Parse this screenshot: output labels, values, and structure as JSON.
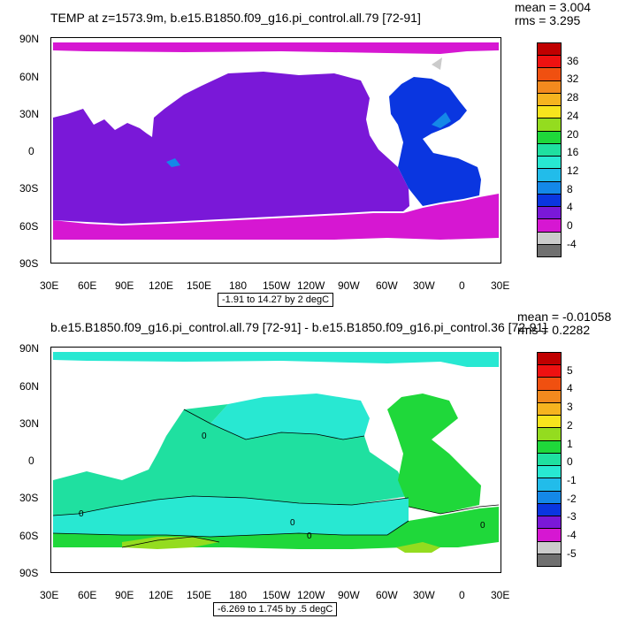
{
  "chart_data": [
    {
      "type": "heatmap",
      "title": "TEMP at z=1573.9m, b.e15.B1850.f09_g16.pi_control.all.79 [72-91]",
      "stats": {
        "mean": "mean = 3.004",
        "rms": "rms = 3.295"
      },
      "range_label": "-1.91 to 14.27 by 2 degC",
      "x_ticks": [
        "30E",
        "60E",
        "90E",
        "120E",
        "150E",
        "180",
        "150W",
        "120W",
        "90W",
        "60W",
        "30W",
        "0",
        "30E"
      ],
      "y_ticks": [
        "90N",
        "60N",
        "30N",
        "0",
        "30S",
        "60S",
        "90S"
      ],
      "colorbar_labels": [
        "36",
        "32",
        "28",
        "24",
        "20",
        "16",
        "12",
        "8",
        "4",
        "0",
        "-4"
      ],
      "colorbar_colors": [
        "#c00000",
        "#ee1111",
        "#f05010",
        "#f38a1e",
        "#f6b41f",
        "#f7e41d",
        "#94dc1f",
        "#1fd83a",
        "#1fe0a0",
        "#28e8d2",
        "#22bcea",
        "#1488e8",
        "#0a36e0",
        "#7a18d8",
        "#d617d2",
        "#cbcbcb",
        "#707070"
      ],
      "regions": [
        {
          "name": "arctic",
          "color": "#d617d2"
        },
        {
          "name": "pacific-indian",
          "color": "#7a18d8"
        },
        {
          "name": "atlantic",
          "color": "#0a36e0"
        },
        {
          "name": "southern",
          "color": "#d617d2"
        }
      ]
    },
    {
      "type": "heatmap",
      "title": "b.e15.B1850.f09_g16.pi_control.all.79 [72-91] - b.e15.B1850.f09_g16.pi_control.36 [72-91]",
      "stats": {
        "mean": "mean = -0.01058",
        "rms": "rms = 0.2282"
      },
      "range_label": "-6.269 to 1.745 by .5 degC",
      "x_ticks": [
        "30E",
        "60E",
        "90E",
        "120E",
        "150E",
        "180",
        "150W",
        "120W",
        "90W",
        "60W",
        "30W",
        "0",
        "30E"
      ],
      "y_ticks": [
        "90N",
        "60N",
        "30N",
        "0",
        "30S",
        "60S",
        "90S"
      ],
      "colorbar_labels": [
        "5",
        "4",
        "3",
        "2",
        "1",
        "0",
        "-1",
        "-2",
        "-3",
        "-4",
        "-5"
      ],
      "colorbar_colors": [
        "#c00000",
        "#ee1111",
        "#f05010",
        "#f38a1e",
        "#f6b41f",
        "#f7e41d",
        "#94dc1f",
        "#1fd83a",
        "#1fe0a0",
        "#28e8d2",
        "#22bcea",
        "#1488e8",
        "#0a36e0",
        "#7a18d8",
        "#d617d2",
        "#cbcbcb",
        "#707070"
      ],
      "contour_labels": [
        "0",
        "0",
        "0",
        "0",
        "0"
      ],
      "regions": [
        {
          "name": "arctic",
          "color": "#28e8d2"
        },
        {
          "name": "north-pacific-sub",
          "color": "#1fe0a0"
        },
        {
          "name": "north-pacific",
          "color": "#28e8d2"
        },
        {
          "name": "tropics",
          "color": "#1fd83a"
        },
        {
          "name": "south-mid",
          "color": "#28e8d2"
        },
        {
          "name": "southern",
          "color": "#1fd83a"
        },
        {
          "name": "antarctic-band",
          "color": "#94dc1f"
        }
      ]
    }
  ]
}
